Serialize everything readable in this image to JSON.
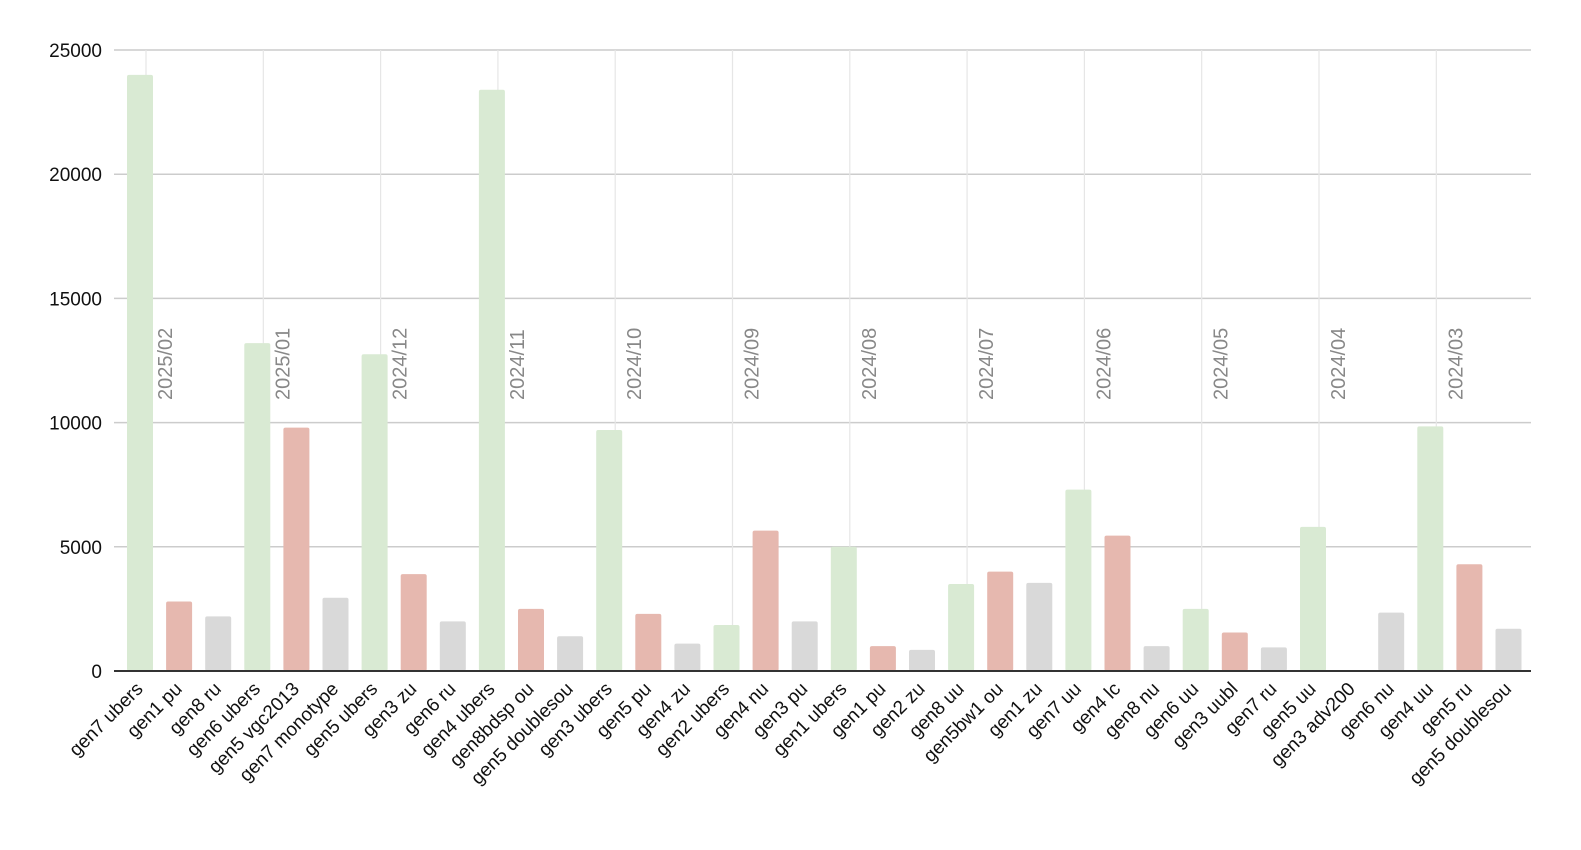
{
  "chart_data": {
    "type": "bar",
    "title": "",
    "xlabel": "",
    "ylabel": "",
    "ylim": [
      0,
      25000
    ],
    "yticks": [
      0,
      5000,
      10000,
      15000,
      20000,
      25000
    ],
    "grid": true,
    "legend": "none",
    "colors": {
      "green": "#d9ead3",
      "red": "#e6b8af",
      "gray": "#d9d9d9",
      "grid": "#cccccc",
      "month_line": "#e6e6e6",
      "axis": "#333333"
    },
    "categories": [
      "gen7 ubers",
      "gen1 pu",
      "gen8 ru",
      "gen6 ubers",
      "gen5 vgc2013",
      "gen7 monotype",
      "gen5 ubers",
      "gen3 zu",
      "gen6 ru",
      "gen4 ubers",
      "gen8bdsp ou",
      "gen5 doublesou",
      "gen3 ubers",
      "gen5 pu",
      "gen4 zu",
      "gen2 ubers",
      "gen4 nu",
      "gen3 pu",
      "gen1 ubers",
      "gen1 pu",
      "gen2 zu",
      "gen8 uu",
      "gen5bw1 ou",
      "gen1 zu",
      "gen7 uu",
      "gen4 lc",
      "gen8 nu",
      "gen6 uu",
      "gen3 uubl",
      "gen7 ru",
      "gen5 uu",
      "gen3 adv200",
      "gen6 nu",
      "gen4 uu",
      "gen5 ru",
      "gen5 doublesou"
    ],
    "values": [
      24000,
      2800,
      2200,
      13200,
      9800,
      2950,
      12750,
      3900,
      2000,
      23400,
      2500,
      1400,
      9700,
      2300,
      1100,
      1850,
      5650,
      2000,
      5000,
      1000,
      850,
      3500,
      4000,
      3550,
      7300,
      5450,
      1000,
      2500,
      1550,
      950,
      5800,
      0,
      2350,
      9850,
      4300,
      1700
    ],
    "bar_colors": [
      "green",
      "red",
      "gray",
      "green",
      "red",
      "gray",
      "green",
      "red",
      "gray",
      "green",
      "red",
      "gray",
      "green",
      "red",
      "gray",
      "green",
      "red",
      "gray",
      "green",
      "red",
      "gray",
      "green",
      "red",
      "gray",
      "green",
      "red",
      "gray",
      "green",
      "red",
      "gray",
      "green",
      "red",
      "gray",
      "green",
      "red",
      "gray"
    ],
    "month_markers": [
      {
        "label": "2025/02",
        "at_index": 0
      },
      {
        "label": "2025/01",
        "at_index": 3
      },
      {
        "label": "2024/12",
        "at_index": 6
      },
      {
        "label": "2024/11",
        "at_index": 9
      },
      {
        "label": "2024/10",
        "at_index": 12
      },
      {
        "label": "2024/09",
        "at_index": 15
      },
      {
        "label": "2024/08",
        "at_index": 18
      },
      {
        "label": "2024/07",
        "at_index": 21
      },
      {
        "label": "2024/06",
        "at_index": 24
      },
      {
        "label": "2024/05",
        "at_index": 27
      },
      {
        "label": "2024/04",
        "at_index": 30
      },
      {
        "label": "2024/03",
        "at_index": 33
      }
    ]
  }
}
